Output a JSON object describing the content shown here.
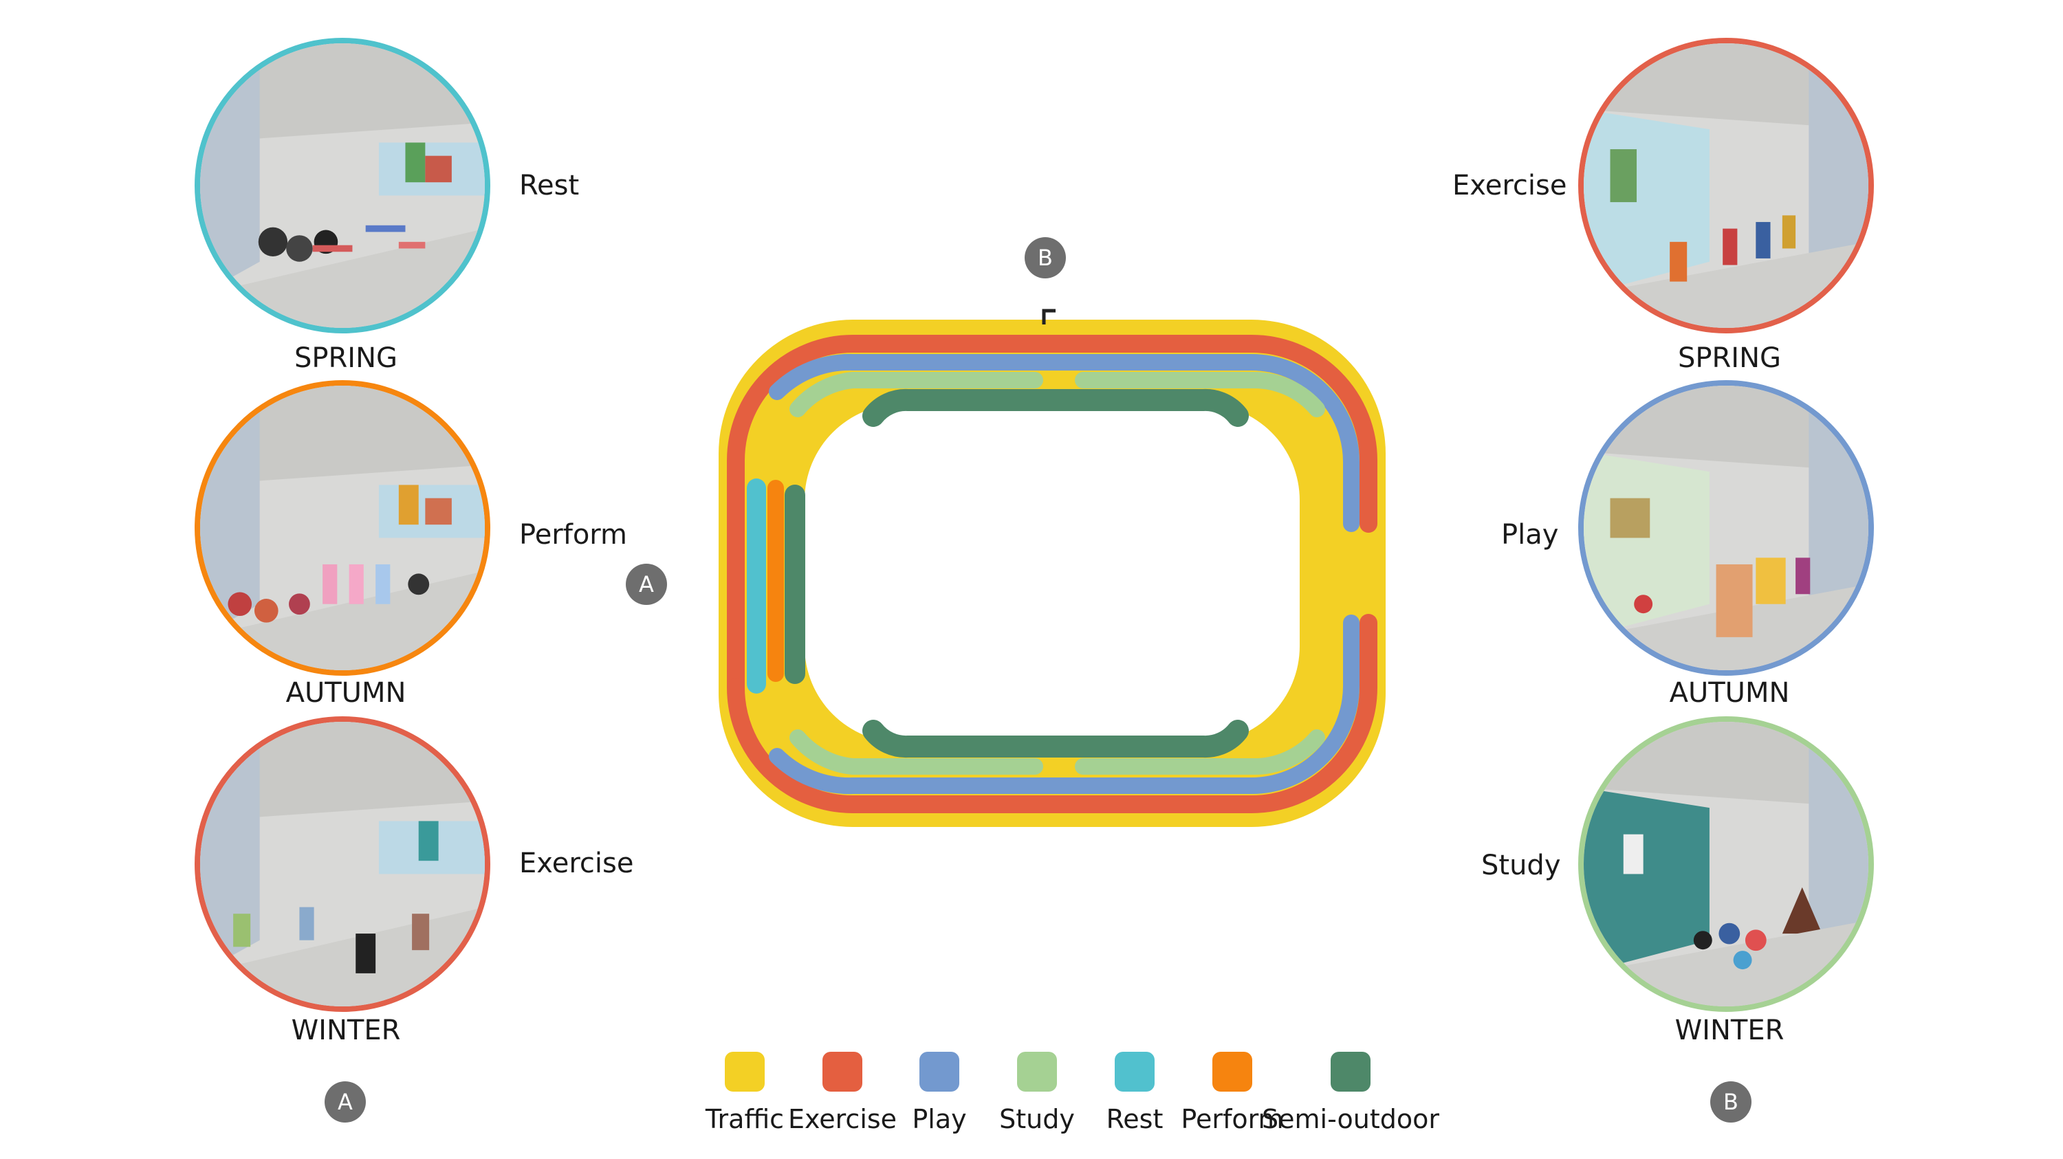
{
  "colors": {
    "traffic": "#F3D025",
    "exercise": "#E45F40",
    "play": "#7399CF",
    "study": "#A5D193",
    "rest": "#51C1CE",
    "perform": "#F6840F",
    "semi_outdoor": "#4E8869",
    "marker": "#6e6e6e"
  },
  "left": {
    "marker": "A",
    "cards": [
      {
        "activity": "Rest",
        "season": "SPRING",
        "color": "#4FC2CC"
      },
      {
        "activity": "Perform",
        "season": "AUTUMN",
        "color": "#F6860F"
      },
      {
        "activity": "Exercise",
        "season": "WINTER",
        "color": "#E2604A"
      }
    ]
  },
  "right": {
    "marker": "B",
    "cards": [
      {
        "activity": "Exercise",
        "season": "SPRING",
        "color": "#E2604A"
      },
      {
        "activity": "Play",
        "season": "AUTUMN",
        "color": "#7399CF"
      },
      {
        "activity": "Study",
        "season": "WINTER",
        "color": "#A5D193"
      }
    ]
  },
  "plan": {
    "marker_a": "A",
    "marker_b": "B"
  },
  "legend": [
    {
      "label": "Traffic",
      "color": "#F3D025"
    },
    {
      "label": "Exercise",
      "color": "#E45F40"
    },
    {
      "label": "Play",
      "color": "#7399CF"
    },
    {
      "label": "Study",
      "color": "#A5D193"
    },
    {
      "label": "Rest",
      "color": "#51C1CE"
    },
    {
      "label": "Perform",
      "color": "#F6840F"
    },
    {
      "label": "Semi-outdoor",
      "color": "#4E8869"
    }
  ]
}
